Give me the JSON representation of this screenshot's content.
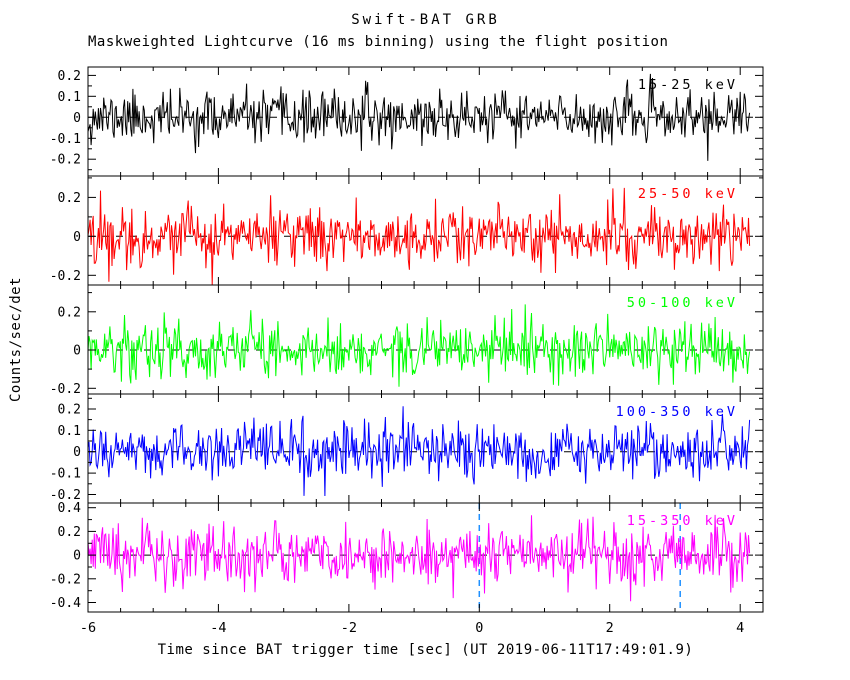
{
  "header": {
    "title": "Swift-BAT GRB",
    "subtitle": "Maskweighted Lightcurve (16 ms binning) using the flight position"
  },
  "chart_data": {
    "type": "line",
    "title": "Swift-BAT GRB",
    "subtitle": "Maskweighted Lightcurve (16 ms binning) using the flight position",
    "xlabel": "Time since BAT trigger time [sec] (UT 2019-06-11T17:49:01.9)",
    "ylabel": "Counts/sec/det",
    "x_range": [
      -6,
      4.35
    ],
    "data_t_range": [
      -6,
      4.15
    ],
    "x_ticks": [
      -6,
      -4,
      -2,
      0,
      2,
      4
    ],
    "x_tick_labels": [
      "-6",
      "-4",
      "-2",
      "0",
      "2",
      "4"
    ],
    "x_minor_step": 0.5,
    "bin_width_sec": 0.016,
    "grid": false,
    "background": "#ffffff",
    "frame_color": "#000000",
    "zero_line": {
      "value": 0,
      "style": "dashed",
      "color": "#000000"
    },
    "trigger_lines": {
      "x": [
        0,
        3.08
      ],
      "style": "dashed",
      "color": "#1E90FF",
      "shown_in_panel": "15-350 keV"
    },
    "panels": [
      {
        "label": "15-25 keV",
        "color": "#000000",
        "ylim": [
          -0.28,
          0.24
        ],
        "yticks": [
          0.2,
          0.1,
          0,
          -0.1,
          -0.2
        ],
        "ytick_labels": [
          "0.2",
          "0.1",
          "0",
          "-0.1",
          "-0.2"
        ],
        "y_minor_step": 0.05,
        "noise_mean": 0,
        "noise_sigma": 0.06,
        "seed": 11,
        "show_trigger_lines": false
      },
      {
        "label": "25-50 keV",
        "color": "#ff0000",
        "ylim": [
          -0.25,
          0.31
        ],
        "yticks": [
          0.2,
          0,
          -0.2
        ],
        "ytick_labels": [
          "0.2",
          "0",
          "-0.2"
        ],
        "y_minor_step": 0.1,
        "noise_mean": 0,
        "noise_sigma": 0.075,
        "seed": 22,
        "show_trigger_lines": false
      },
      {
        "label": "50-100 keV",
        "color": "#00ff00",
        "ylim": [
          -0.23,
          0.34
        ],
        "yticks": [
          0.2,
          0,
          -0.2
        ],
        "ytick_labels": [
          "0.2",
          "0",
          "-0.2"
        ],
        "y_minor_step": 0.1,
        "noise_mean": 0,
        "noise_sigma": 0.075,
        "seed": 33,
        "show_trigger_lines": false
      },
      {
        "label": "100-350 keV",
        "color": "#0000ff",
        "ylim": [
          -0.24,
          0.27
        ],
        "yticks": [
          0.2,
          0.1,
          0,
          -0.1,
          -0.2
        ],
        "ytick_labels": [
          "0.2",
          "0.1",
          "0",
          "-0.1",
          "-0.2"
        ],
        "y_minor_step": 0.05,
        "noise_mean": 0,
        "noise_sigma": 0.065,
        "seed": 44,
        "show_trigger_lines": false
      },
      {
        "label": "15-350 keV",
        "color": "#ff00ff",
        "ylim": [
          -0.48,
          0.44
        ],
        "yticks": [
          0.4,
          0.2,
          0,
          -0.2,
          -0.4
        ],
        "ytick_labels": [
          "0.4",
          "0.2",
          "0",
          "-0.2",
          "-0.4"
        ],
        "y_minor_step": 0.1,
        "noise_mean": 0,
        "noise_sigma": 0.13,
        "seed": 55,
        "show_trigger_lines": true
      }
    ]
  }
}
